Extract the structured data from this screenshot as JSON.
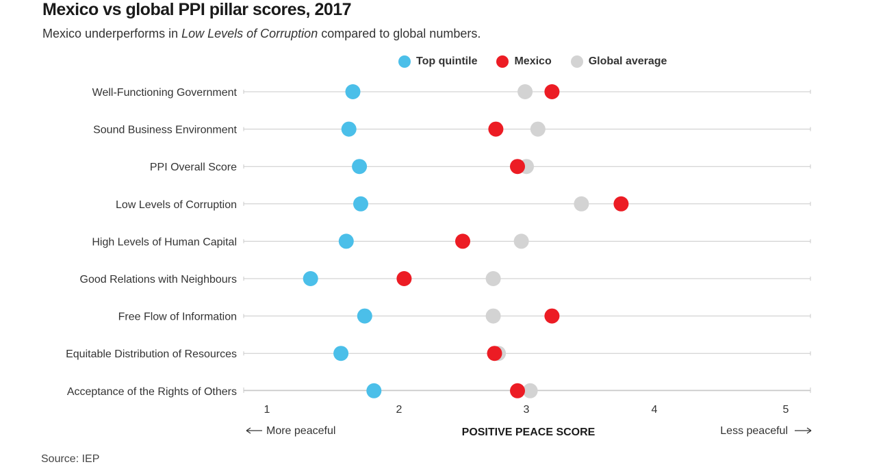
{
  "title": "Mexico vs global PPI pillar scores, 2017",
  "subtitle": {
    "before": "Mexico underperforms in ",
    "emphasis": "Low Levels of Corruption",
    "after": " compared to global numbers."
  },
  "source": "Source: IEP",
  "colors": {
    "top_quintile": "#4bbfe9",
    "mexico": "#ec1c24",
    "global_average": "#d3d3d3",
    "gridline": "#c8c8c8",
    "text": "#333333"
  },
  "chart_data": {
    "type": "scatter",
    "title": "Mexico vs global PPI pillar scores, 2017",
    "xlabel": "POSITIVE PEACE SCORE",
    "xlabel_left": "More peaceful",
    "xlabel_right": "Less peaceful",
    "xlim": [
      1,
      5
    ],
    "xticks": [
      "1",
      "2",
      "3",
      "4",
      "5"
    ],
    "grid": true,
    "legend_position": "top-right",
    "categories": [
      "Well-Functioning Government",
      "Sound Business Environment",
      "PPI Overall Score",
      "Low Levels of Corruption",
      "High Levels of Human Capital",
      "Good Relations with Neighbours",
      "Free Flow of Information",
      "Equitable Distribution of Resources",
      "Acceptance of the Rights of Others"
    ],
    "series": [
      {
        "name": "Top quintile",
        "color": "#4bbfe9",
        "values": [
          1.65,
          1.62,
          1.7,
          1.71,
          1.6,
          1.33,
          1.74,
          1.56,
          1.81
        ]
      },
      {
        "name": "Mexico",
        "color": "#ec1c24",
        "values": [
          3.2,
          2.76,
          2.93,
          3.74,
          2.5,
          2.04,
          3.2,
          2.75,
          2.93
        ]
      },
      {
        "name": "Global average",
        "color": "#d3d3d3",
        "values": [
          2.99,
          3.09,
          3.0,
          3.43,
          2.96,
          2.74,
          2.74,
          2.78,
          3.03
        ]
      }
    ]
  }
}
